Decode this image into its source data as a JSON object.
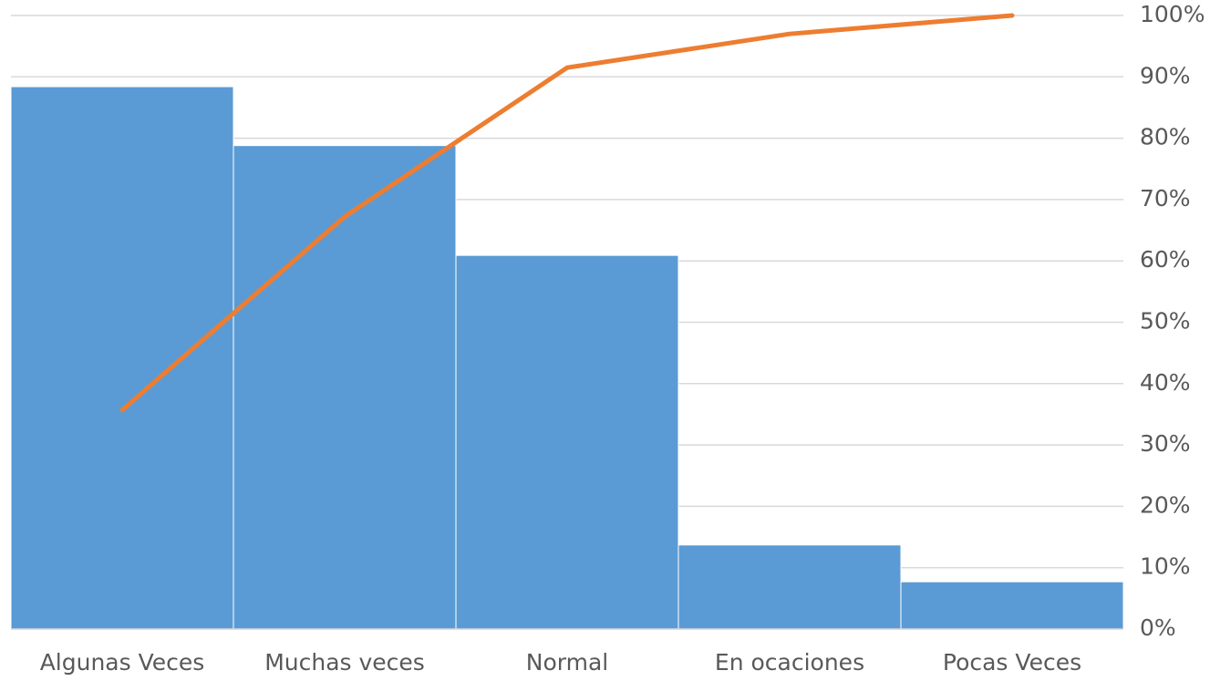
{
  "chart_data": {
    "type": "pareto",
    "categories": [
      "Algunas Veces",
      "Muchas veces",
      "Normal",
      "En ocaciones",
      "Pocas Veces"
    ],
    "series": [
      {
        "type": "bar",
        "color": "#5b9bd5",
        "values": [
          88.4,
          78.8,
          60.9,
          13.7,
          7.7
        ]
      },
      {
        "type": "line",
        "color": "#ed7d31",
        "values": [
          35.7,
          67.2,
          91.5,
          97.0,
          100
        ]
      }
    ],
    "ylim": [
      0,
      100
    ],
    "yticks": [
      {
        "value": 0,
        "label": "0%"
      },
      {
        "value": 10,
        "label": "10%"
      },
      {
        "value": 20,
        "label": "20%"
      },
      {
        "value": 30,
        "label": "30%"
      },
      {
        "value": 40,
        "label": "40%"
      },
      {
        "value": 50,
        "label": "50%"
      },
      {
        "value": 60,
        "label": "60%"
      },
      {
        "value": 70,
        "label": "70%"
      },
      {
        "value": 80,
        "label": "80%"
      },
      {
        "value": 90,
        "label": "90%"
      },
      {
        "value": 100,
        "label": "100%"
      }
    ],
    "grid": true,
    "axis_side": "right"
  }
}
